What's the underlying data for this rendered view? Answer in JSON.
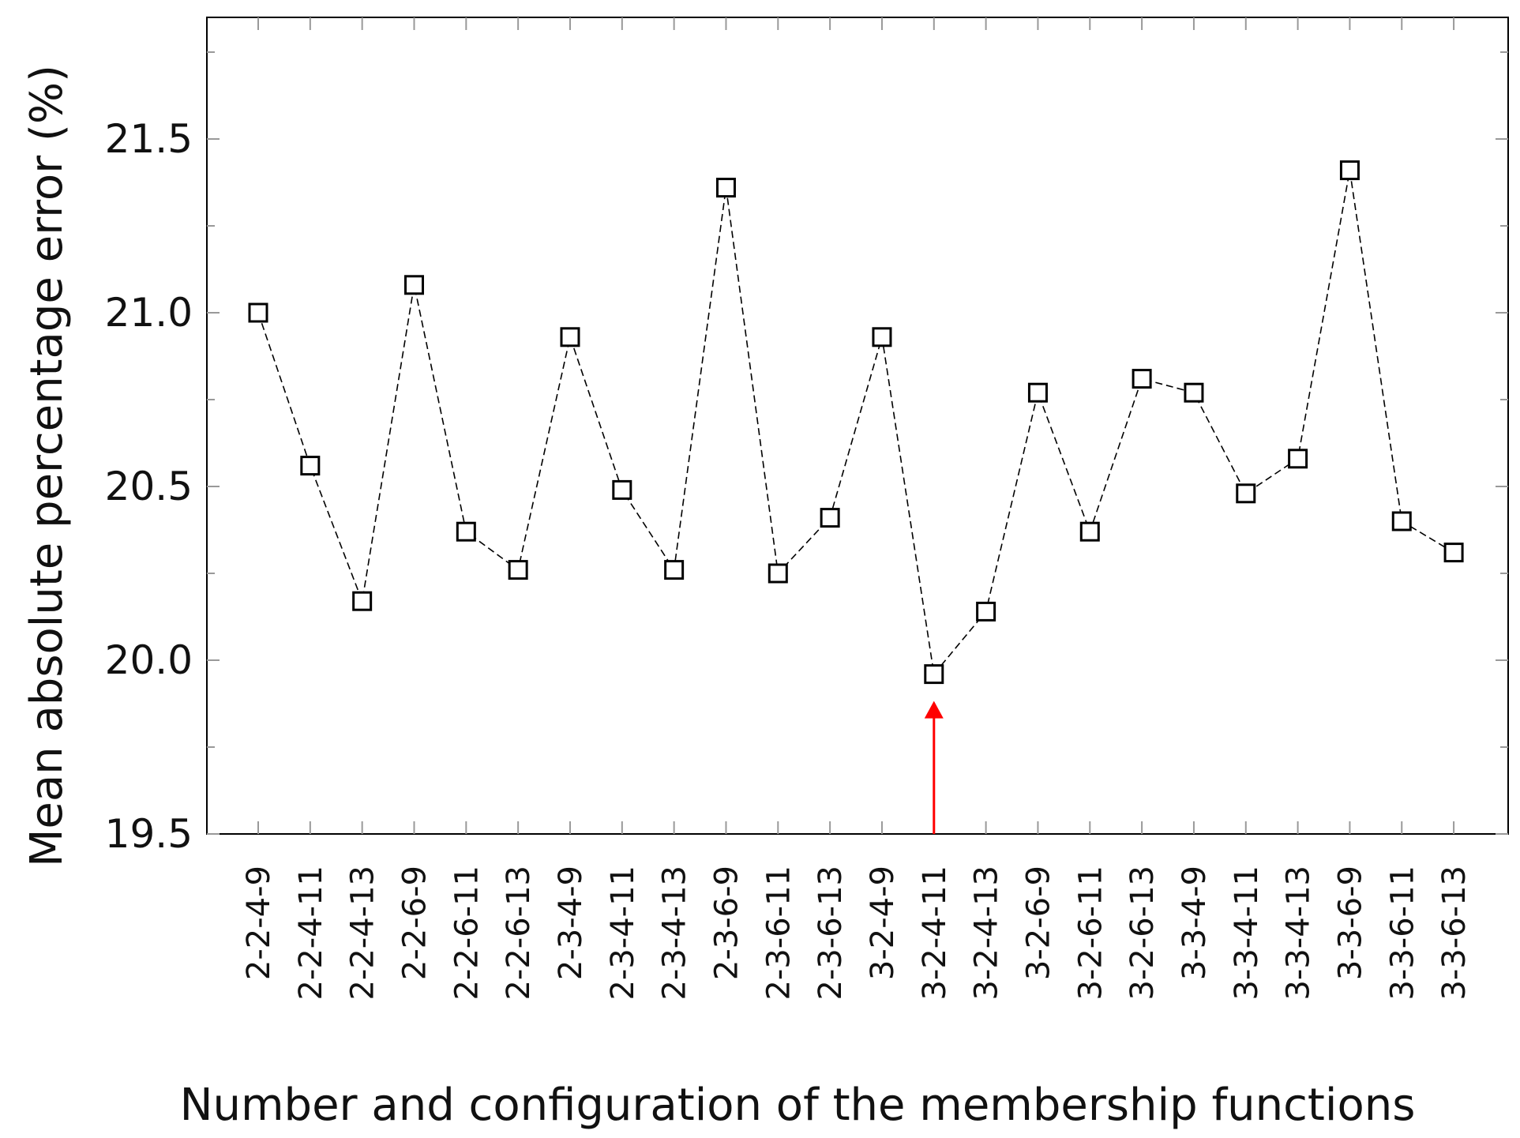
{
  "chart_data": {
    "type": "line",
    "xlabel": "Number and configuration of the membership functions",
    "ylabel": "Mean absolute percentage error (%)",
    "categories": [
      "2-2-4-9",
      "2-2-4-11",
      "2-2-4-13",
      "2-2-6-9",
      "2-2-6-11",
      "2-2-6-13",
      "2-3-4-9",
      "2-3-4-11",
      "2-3-4-13",
      "2-3-6-9",
      "2-3-6-11",
      "2-3-6-13",
      "3-2-4-9",
      "3-2-4-11",
      "3-2-4-13",
      "3-2-6-9",
      "3-2-6-11",
      "3-2-6-13",
      "3-3-4-9",
      "3-3-4-11",
      "3-3-4-13",
      "3-3-6-9",
      "3-3-6-11",
      "3-3-6-13"
    ],
    "series": [
      {
        "values": [
          21.0,
          20.56,
          20.17,
          21.08,
          20.37,
          20.26,
          20.93,
          20.49,
          20.26,
          21.36,
          20.25,
          20.41,
          20.93,
          19.96,
          20.14,
          20.77,
          20.37,
          20.81,
          20.77,
          20.48,
          20.58,
          21.41,
          20.4,
          20.31
        ],
        "marker": "open-square",
        "line_style": "dashed",
        "color": "#000000"
      }
    ],
    "ylim": [
      19.5,
      21.85
    ],
    "yticks": [
      "19.5",
      "20.0",
      "20.5",
      "21.0",
      "21.5"
    ],
    "highlight": {
      "category": "3-2-4-11",
      "marker": "red-arrow",
      "color": "#ff0000"
    },
    "grid": false,
    "legend": "none"
  }
}
